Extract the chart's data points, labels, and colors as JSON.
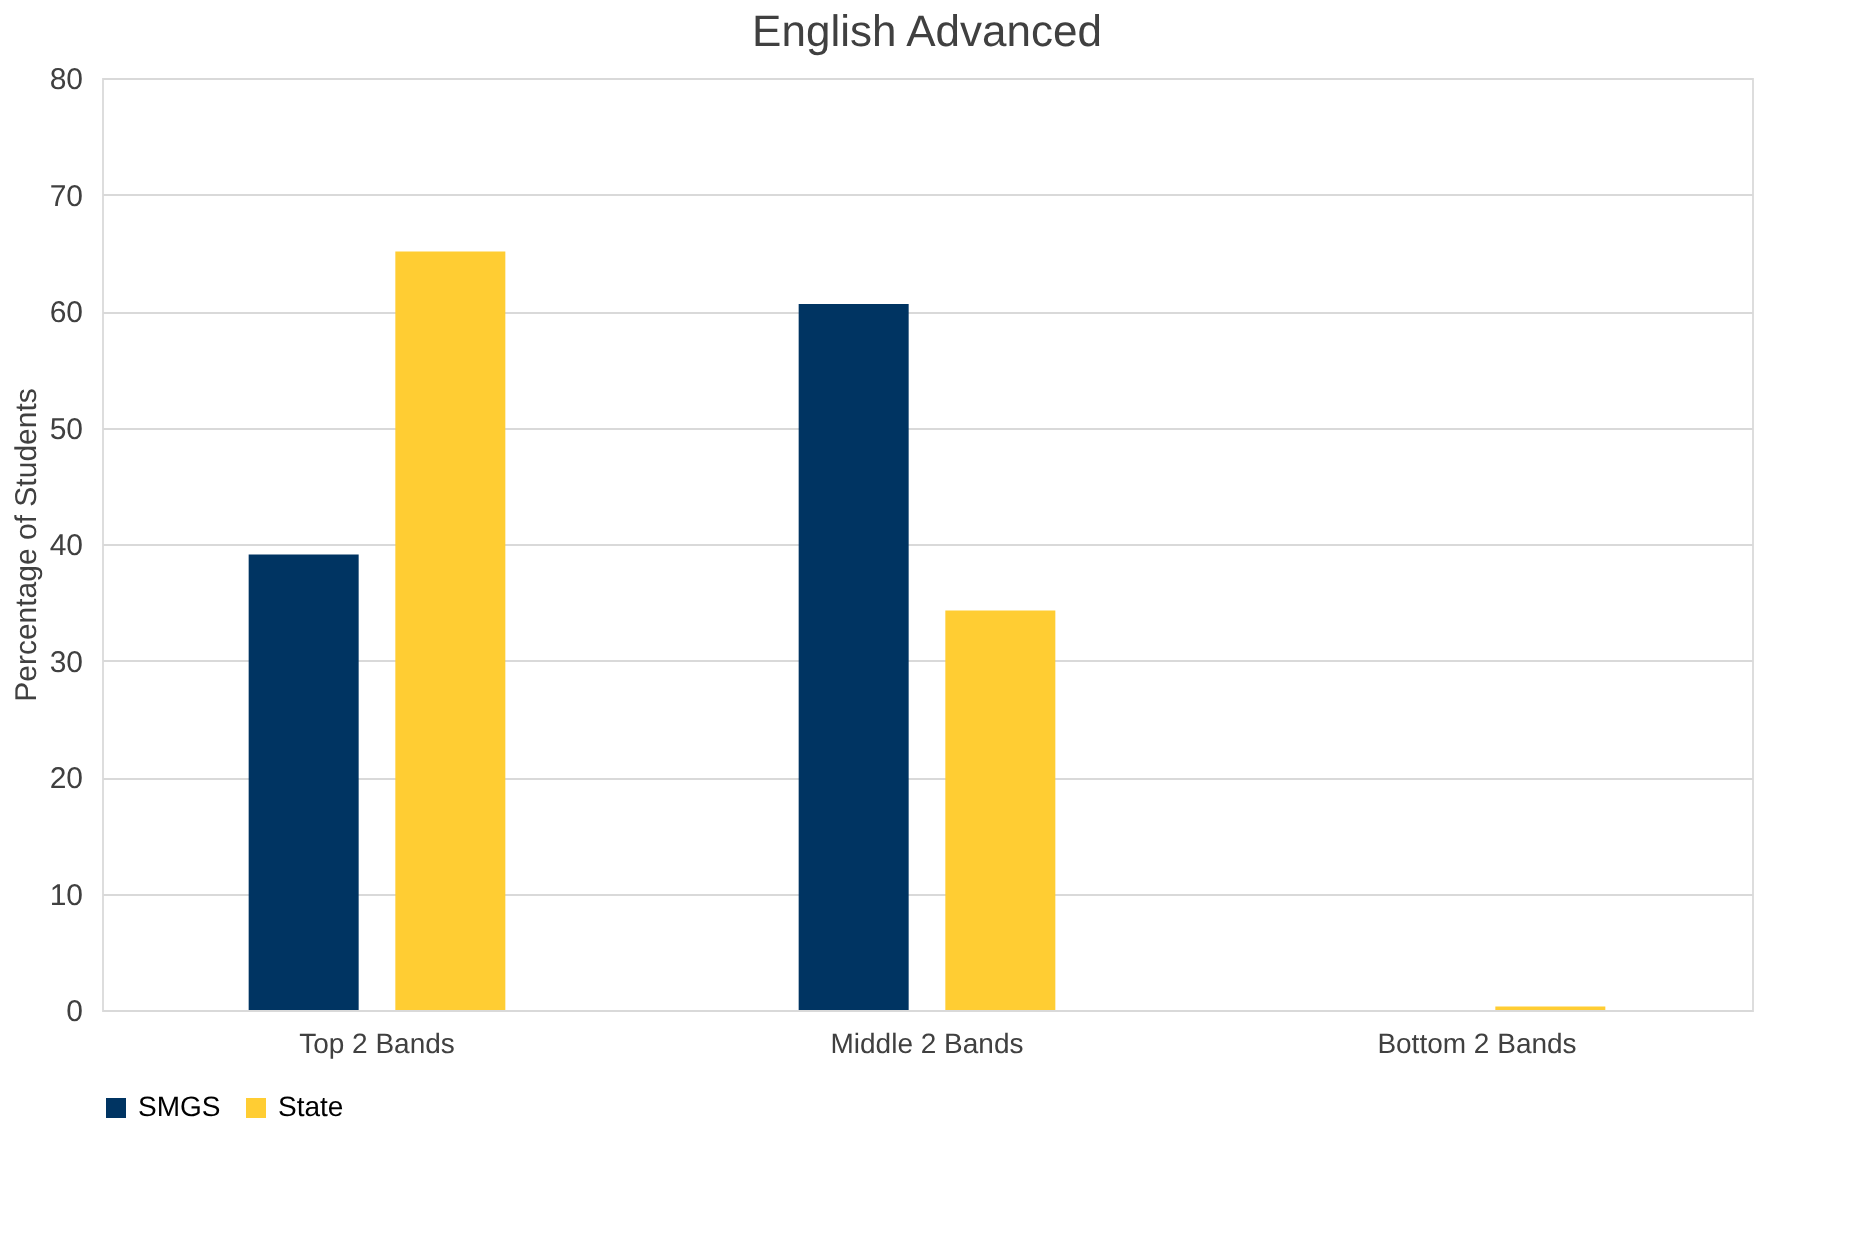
{
  "chart_data": {
    "type": "bar",
    "title": "English Advanced",
    "ylabel": "Percentage of Students",
    "categories": [
      "Top 2 Bands",
      "Middle 2 Bands",
      "Bottom 2 Bands"
    ],
    "series": [
      {
        "name": "SMGS",
        "color": "#003462",
        "values": [
          39.1,
          60.6,
          0
        ]
      },
      {
        "name": "State",
        "color": "#ffcd33",
        "values": [
          65.1,
          34.3,
          0.3
        ]
      }
    ],
    "ylim": [
      0,
      80
    ],
    "yticks": [
      0,
      10,
      20,
      30,
      40,
      50,
      60,
      70,
      80
    ],
    "grid": "y",
    "legend": "bottom"
  }
}
